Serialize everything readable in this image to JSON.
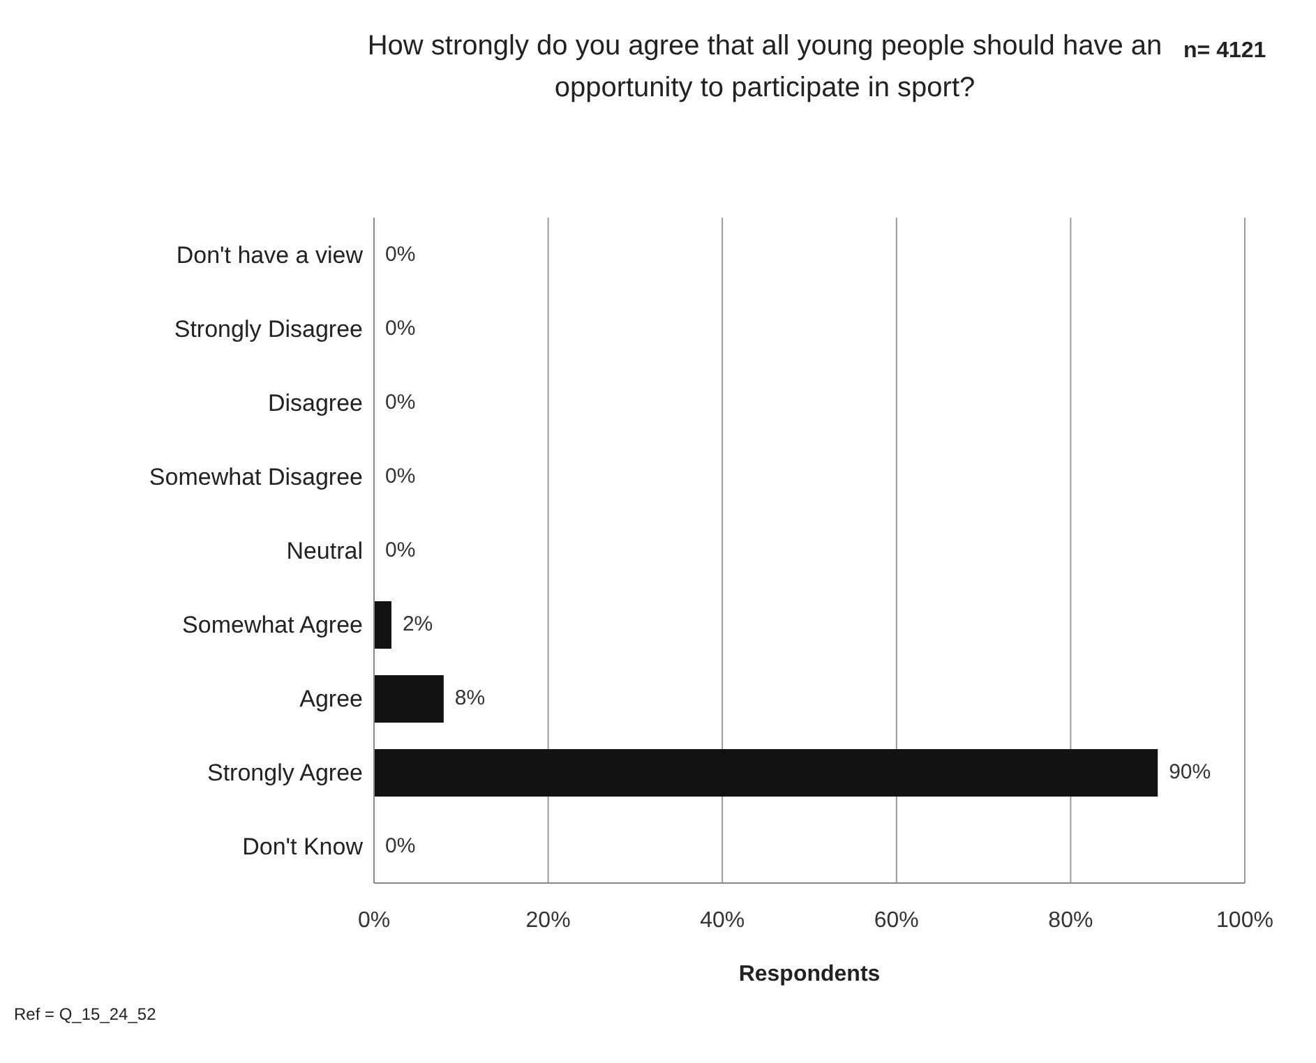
{
  "chart_data": {
    "type": "bar",
    "orientation": "horizontal",
    "title": "How strongly do you agree that all young people should have an opportunity to participate in sport?",
    "annotations": [
      "n= 4121",
      "Ref = Q_15_24_52"
    ],
    "xlabel": "Respondents",
    "categories": [
      "Don't have a view",
      "Strongly Disagree",
      "Disagree",
      "Somewhat Disagree",
      "Neutral",
      "Somewhat Agree",
      "Agree",
      "Strongly Agree",
      "Don't Know"
    ],
    "values": [
      0,
      0,
      0,
      0,
      0,
      2,
      8,
      90,
      0
    ],
    "value_labels": [
      "0%",
      "0%",
      "0%",
      "0%",
      "0%",
      "2%",
      "8%",
      "90%",
      "0%"
    ],
    "color": "#111111",
    "xlim": [
      0,
      100
    ],
    "xticks": [
      {
        "value": 0,
        "label": "0%"
      },
      {
        "value": 20,
        "label": "20%"
      },
      {
        "value": 40,
        "label": "40%"
      },
      {
        "value": 60,
        "label": "60%"
      },
      {
        "value": 80,
        "label": "80%"
      },
      {
        "value": 100,
        "label": "100%"
      }
    ],
    "grid": "x"
  }
}
